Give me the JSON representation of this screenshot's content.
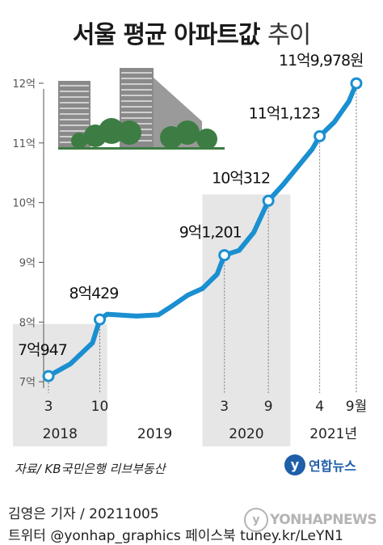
{
  "title": {
    "main": "서울 평균 아파트값",
    "light": "추이"
  },
  "chart_data": {
    "type": "line",
    "title": "서울 평균 아파트값 추이",
    "ylabel": "",
    "xlabel": "",
    "yticks": [
      "7억",
      "8억",
      "9억",
      "10억",
      "11억",
      "12억"
    ],
    "ytick_values": [
      7,
      8,
      9,
      10,
      11,
      12
    ],
    "ylim": [
      6.92,
      12.04
    ],
    "unit": "억 원",
    "line_color": "#1a8fd1",
    "shade_color": "#e6e6e6",
    "series": [
      {
        "values": [
          {
            "x": "2018-03",
            "y": 7.0947
          },
          {
            "x": "2018-06",
            "y": 7.3
          },
          {
            "x": "2018-09",
            "y": 7.65
          },
          {
            "x": "2018-10",
            "y": 8.0429
          },
          {
            "x": "2018-11",
            "y": 8.13
          },
          {
            "x": "2019-03",
            "y": 8.1
          },
          {
            "x": "2019-06",
            "y": 8.12
          },
          {
            "x": "2019-08",
            "y": 8.28
          },
          {
            "x": "2019-10",
            "y": 8.45
          },
          {
            "x": "2019-12",
            "y": 8.56
          },
          {
            "x": "2020-02",
            "y": 8.8
          },
          {
            "x": "2020-03",
            "y": 9.1201
          },
          {
            "x": "2020-05",
            "y": 9.2
          },
          {
            "x": "2020-07",
            "y": 9.5
          },
          {
            "x": "2020-09",
            "y": 10.0312
          },
          {
            "x": "2020-11",
            "y": 10.3
          },
          {
            "x": "2021-01",
            "y": 10.6
          },
          {
            "x": "2021-03",
            "y": 10.9
          },
          {
            "x": "2021-04",
            "y": 11.1123
          },
          {
            "x": "2021-06",
            "y": 11.35
          },
          {
            "x": "2021-08",
            "y": 11.7
          },
          {
            "x": "2021-09",
            "y": 11.9978
          }
        ]
      }
    ],
    "labeled_points": [
      {
        "x": "2018-03",
        "y": 7.0947,
        "label": "7억947"
      },
      {
        "x": "2018-10",
        "y": 8.0429,
        "label": "8억429"
      },
      {
        "x": "2020-03",
        "y": 9.1201,
        "label": "9억1,201"
      },
      {
        "x": "2020-09",
        "y": 10.0312,
        "label": "10억312"
      },
      {
        "x": "2021-04",
        "y": 11.1123,
        "label": "11억1,123"
      },
      {
        "x": "2021-09",
        "y": 11.9978,
        "label": "11억9,978원"
      }
    ],
    "month_ticks": [
      {
        "x": "2018-03",
        "label": "3"
      },
      {
        "x": "2018-10",
        "label": "10"
      },
      {
        "x": "2020-03",
        "label": "3"
      },
      {
        "x": "2020-09",
        "label": "9"
      },
      {
        "x": "2021-04",
        "label": "4"
      },
      {
        "x": "2021-09",
        "label": "9월"
      }
    ],
    "year_bands": [
      {
        "label": "2018",
        "from": "2018-03",
        "to": "2018-11",
        "shaded": true
      },
      {
        "label": "2019",
        "from": "2018-11",
        "to": "2019-12",
        "shaded": false
      },
      {
        "label": "2020",
        "from": "2019-12",
        "to": "2020-12",
        "shaded": true
      },
      {
        "label": "2021년",
        "from": "2020-12",
        "to": "2021-09",
        "shaded": false
      }
    ],
    "grid": false
  },
  "footer": {
    "source": "자료/ KB국민은행 리브부동산",
    "logo_text": "연합뉴스",
    "logo_mark": "y",
    "credit_line1": "김영은 기자 / 20211005",
    "credit_line2": "트위터 @yonhap_graphics  페이스북 tuney.kr/LeYN1",
    "watermark_text": "YONHAPNEWS",
    "watermark_mark": "y"
  }
}
